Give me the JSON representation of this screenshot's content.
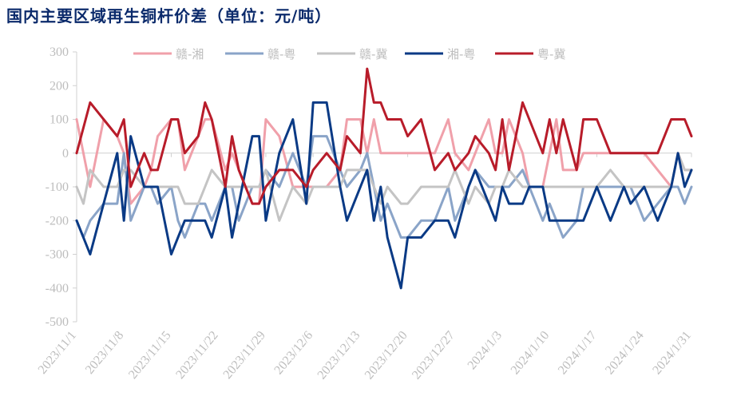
{
  "chart_data": {
    "type": "line",
    "title": "国内主要区域再生铜杆价差（单位：元/吨）",
    "ylim": [
      -500,
      300
    ],
    "yticks": [
      300,
      200,
      100,
      0,
      -100,
      -200,
      -300,
      -400,
      -500
    ],
    "xtick_labels": [
      "2023/11/1",
      "2023/11/8",
      "2023/11/15",
      "2023/11/22",
      "2023/11/29",
      "2023/12/6",
      "2023/12/13",
      "2023/12/20",
      "2023/12/27",
      "2024/1/3",
      "2024/1/10",
      "2024/1/17",
      "2024/1/24",
      "2024/1/31"
    ],
    "xtick_days": [
      0,
      7,
      14,
      21,
      28,
      35,
      42,
      49,
      56,
      63,
      70,
      77,
      84,
      91
    ],
    "legend_position": "top",
    "series": [
      {
        "name": "赣-湘",
        "color": "#f0a0aa",
        "x": [
          0,
          2,
          4,
          6,
          7,
          8,
          10,
          11,
          12,
          14,
          15,
          16,
          18,
          19,
          20,
          22,
          23,
          24,
          26,
          27,
          28,
          30,
          32,
          34,
          35,
          37,
          39,
          40,
          42,
          43,
          44,
          45,
          46,
          48,
          49,
          51,
          53,
          55,
          56,
          58,
          59,
          61,
          62,
          63,
          64,
          66,
          67,
          69,
          70,
          71,
          72,
          74,
          75,
          77,
          79,
          81,
          82,
          84,
          86,
          88,
          89,
          90,
          91
        ],
        "y": [
          100,
          -100,
          100,
          50,
          0,
          -150,
          -100,
          -50,
          50,
          100,
          100,
          -50,
          50,
          100,
          100,
          -50,
          0,
          -50,
          -150,
          -150,
          100,
          50,
          -100,
          -100,
          -100,
          -100,
          -50,
          100,
          100,
          0,
          100,
          0,
          0,
          0,
          0,
          0,
          0,
          100,
          0,
          -50,
          0,
          100,
          0,
          0,
          100,
          0,
          -100,
          -100,
          0,
          100,
          -50,
          -50,
          0,
          0,
          0,
          0,
          0,
          0,
          -50,
          -100,
          0,
          -50,
          -50
        ]
      },
      {
        "name": "赣-粤",
        "color": "#8aa4c8",
        "x": [
          0,
          1,
          2,
          4,
          6,
          7,
          8,
          10,
          11,
          12,
          14,
          15,
          16,
          18,
          19,
          20,
          22,
          23,
          24,
          26,
          27,
          28,
          30,
          32,
          34,
          35,
          37,
          39,
          40,
          42,
          43,
          44,
          45,
          46,
          48,
          49,
          51,
          53,
          55,
          56,
          58,
          59,
          61,
          62,
          63,
          64,
          66,
          67,
          69,
          70,
          71,
          72,
          74,
          75,
          77,
          79,
          81,
          82,
          84,
          86,
          88,
          89,
          90,
          91
        ],
        "y": [
          -200,
          -250,
          -200,
          -150,
          -150,
          0,
          -200,
          -100,
          -100,
          -150,
          -100,
          -200,
          -250,
          -150,
          -150,
          -200,
          -100,
          -100,
          -200,
          -100,
          -100,
          -50,
          -100,
          0,
          -100,
          50,
          50,
          -50,
          -100,
          -50,
          0,
          -100,
          -200,
          -150,
          -250,
          -250,
          -200,
          -200,
          -100,
          -200,
          -100,
          -50,
          -100,
          -100,
          -100,
          -100,
          -50,
          -100,
          -200,
          -150,
          -200,
          -250,
          -200,
          -100,
          -100,
          -100,
          -100,
          -100,
          -200,
          -150,
          -100,
          -100,
          -150,
          -100
        ]
      },
      {
        "name": "赣-冀",
        "color": "#c4c4c4",
        "x": [
          0,
          1,
          2,
          4,
          6,
          7,
          8,
          10,
          11,
          12,
          14,
          15,
          16,
          18,
          19,
          20,
          22,
          23,
          24,
          26,
          27,
          28,
          30,
          32,
          34,
          35,
          37,
          39,
          40,
          42,
          43,
          44,
          45,
          46,
          48,
          49,
          51,
          53,
          55,
          56,
          58,
          59,
          61,
          62,
          63,
          64,
          66,
          67,
          69,
          70,
          71,
          72,
          74,
          75,
          77,
          79,
          81,
          82,
          84,
          86,
          88,
          89,
          90,
          91
        ],
        "y": [
          -100,
          -150,
          -50,
          -100,
          -100,
          -50,
          -50,
          -100,
          -100,
          -100,
          -100,
          -100,
          -150,
          -150,
          -100,
          -50,
          -100,
          -100,
          -100,
          -100,
          -100,
          -50,
          -200,
          -100,
          -150,
          -100,
          -100,
          -100,
          -50,
          -50,
          -50,
          -100,
          -150,
          -100,
          -150,
          -150,
          -100,
          -100,
          -100,
          -50,
          -150,
          -100,
          -150,
          -100,
          -100,
          -50,
          -100,
          -100,
          -100,
          -100,
          -100,
          -100,
          -100,
          -100,
          -100,
          -50,
          -100,
          -100,
          -100,
          -100,
          -100,
          0,
          -50,
          -50
        ]
      },
      {
        "name": "湘-粤",
        "color": "#0a3a85",
        "x": [
          0,
          2,
          4,
          6,
          7,
          8,
          10,
          11,
          12,
          14,
          15,
          16,
          18,
          19,
          20,
          22,
          23,
          24,
          26,
          27,
          28,
          30,
          32,
          34,
          35,
          37,
          39,
          40,
          42,
          43,
          44,
          45,
          46,
          48,
          49,
          51,
          53,
          55,
          56,
          58,
          59,
          61,
          62,
          63,
          64,
          66,
          67,
          69,
          70,
          71,
          72,
          74,
          75,
          77,
          79,
          81,
          82,
          84,
          86,
          88,
          89,
          90,
          91
        ],
        "y": [
          -200,
          -300,
          -150,
          0,
          -200,
          50,
          -100,
          -100,
          -100,
          -300,
          -250,
          -200,
          -200,
          -200,
          -250,
          -100,
          -250,
          -150,
          50,
          50,
          -200,
          0,
          100,
          -150,
          150,
          150,
          -100,
          -200,
          -100,
          -50,
          -200,
          -100,
          -250,
          -400,
          -250,
          -250,
          -200,
          -200,
          -250,
          -100,
          -50,
          -150,
          -200,
          -100,
          -150,
          -150,
          -100,
          -100,
          -200,
          -200,
          -200,
          -200,
          -200,
          -100,
          -200,
          -100,
          -150,
          -100,
          -200,
          -100,
          0,
          -100,
          -50
        ]
      },
      {
        "name": "粤-冀",
        "color": "#b81c2a",
        "x": [
          0,
          2,
          4,
          6,
          7,
          8,
          10,
          11,
          12,
          14,
          15,
          16,
          18,
          19,
          20,
          22,
          23,
          24,
          26,
          27,
          28,
          30,
          32,
          34,
          35,
          37,
          39,
          40,
          42,
          43,
          44,
          45,
          46,
          48,
          49,
          51,
          53,
          55,
          56,
          58,
          59,
          61,
          62,
          63,
          64,
          66,
          67,
          69,
          70,
          71,
          72,
          74,
          75,
          77,
          79,
          81,
          82,
          84,
          86,
          88,
          89,
          90,
          91
        ],
        "y": [
          0,
          150,
          100,
          50,
          100,
          -100,
          0,
          -50,
          -50,
          100,
          100,
          0,
          50,
          150,
          100,
          -100,
          50,
          -50,
          -150,
          -150,
          -100,
          -50,
          -50,
          -100,
          -50,
          0,
          -50,
          50,
          0,
          250,
          150,
          150,
          100,
          100,
          50,
          100,
          -50,
          0,
          -50,
          0,
          50,
          0,
          -50,
          100,
          -50,
          150,
          100,
          0,
          100,
          0,
          100,
          -50,
          100,
          100,
          0,
          0,
          0,
          0,
          0,
          100,
          100,
          100,
          50
        ]
      }
    ]
  }
}
